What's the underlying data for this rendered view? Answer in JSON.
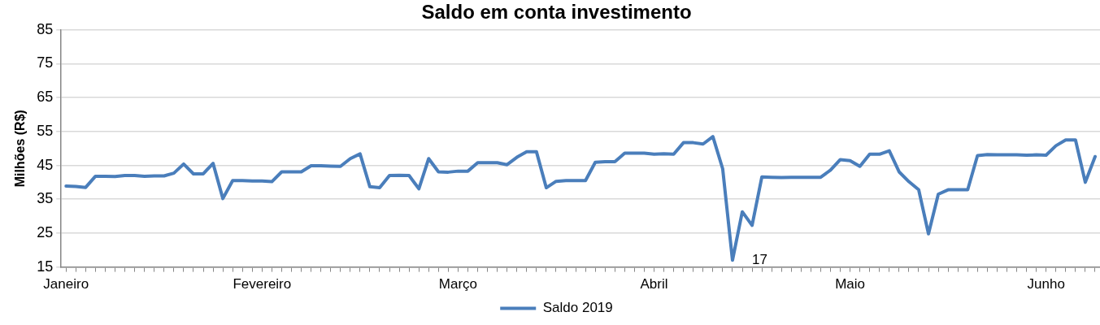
{
  "chart_data": {
    "type": "line",
    "title": "Saldo em conta investimento",
    "ylabel": "Milhões (R$)",
    "categories": [
      "Janeiro",
      null,
      null,
      null,
      null,
      null,
      null,
      null,
      null,
      null,
      null,
      null,
      null,
      null,
      null,
      null,
      null,
      null,
      null,
      null,
      "Fevereiro",
      null,
      null,
      null,
      null,
      null,
      null,
      null,
      null,
      null,
      null,
      null,
      null,
      null,
      null,
      null,
      null,
      null,
      null,
      null,
      "Março",
      null,
      null,
      null,
      null,
      null,
      null,
      null,
      null,
      null,
      null,
      null,
      null,
      null,
      null,
      null,
      null,
      null,
      null,
      null,
      "Abril",
      null,
      null,
      null,
      null,
      null,
      null,
      null,
      null,
      null,
      null,
      null,
      null,
      null,
      null,
      null,
      null,
      null,
      null,
      null,
      "Maio",
      null,
      null,
      null,
      null,
      null,
      null,
      null,
      null,
      null,
      null,
      null,
      null,
      null,
      null,
      null,
      null,
      null,
      null,
      null,
      "Junho",
      null,
      null,
      null,
      null,
      null
    ],
    "series": [
      {
        "name": "Saldo 2019",
        "color": "#4a7ebb",
        "values": [
          38.9,
          38.8,
          38.5,
          41.8,
          41.8,
          41.7,
          42.0,
          42.0,
          41.8,
          41.9,
          41.9,
          42.7,
          45.4,
          42.5,
          42.5,
          45.6,
          35.2,
          40.5,
          40.5,
          40.4,
          40.4,
          40.2,
          43.1,
          43.1,
          43.1,
          44.9,
          44.9,
          44.8,
          44.7,
          47.0,
          48.4,
          38.7,
          38.4,
          42.0,
          42.1,
          42.0,
          38.1,
          47.0,
          43.1,
          43.0,
          43.3,
          43.3,
          45.8,
          45.8,
          45.8,
          45.2,
          47.4,
          49.0,
          49.0,
          38.4,
          40.3,
          40.5,
          40.5,
          40.5,
          45.9,
          46.1,
          46.1,
          48.6,
          48.6,
          48.6,
          48.3,
          48.4,
          48.3,
          51.7,
          51.7,
          51.3,
          53.5,
          44.0,
          17,
          31.3,
          27.3,
          41.6,
          41.5,
          41.4,
          41.5,
          41.5,
          41.5,
          41.5,
          43.6,
          46.7,
          46.4,
          44.7,
          48.3,
          48.3,
          49.3,
          43.1,
          40.2,
          37.8,
          24.8,
          36.5,
          37.8,
          37.8,
          37.8,
          47.9,
          48.2,
          48.1,
          48.1,
          48.1,
          48.0,
          48.1,
          48.0,
          50.8,
          52.5,
          52.5,
          40.0,
          47.6
        ],
        "value_labels": [
          null,
          null,
          null,
          null,
          null,
          null,
          null,
          null,
          null,
          null,
          null,
          null,
          null,
          null,
          null,
          null,
          null,
          null,
          null,
          null,
          null,
          null,
          null,
          null,
          null,
          null,
          null,
          null,
          null,
          null,
          null,
          null,
          null,
          null,
          null,
          null,
          null,
          null,
          null,
          null,
          null,
          null,
          null,
          null,
          null,
          null,
          null,
          null,
          null,
          null,
          null,
          null,
          null,
          null,
          null,
          null,
          null,
          null,
          null,
          null,
          null,
          null,
          null,
          null,
          null,
          null,
          null,
          null,
          "17",
          null,
          null,
          null,
          null,
          null,
          null,
          null,
          null,
          null,
          null,
          null,
          null,
          null,
          null,
          null,
          null,
          null,
          null,
          null,
          null,
          null,
          null,
          null,
          null,
          null,
          null,
          null,
          null,
          null,
          null,
          null,
          null,
          null,
          null,
          null,
          null,
          null
        ]
      }
    ],
    "ylim": [
      15,
      85
    ],
    "yticks": [
      15,
      25,
      35,
      45,
      55,
      65,
      75,
      85
    ],
    "grid": "y",
    "legend": "bottom",
    "marker": "none",
    "line_style": "solid"
  }
}
